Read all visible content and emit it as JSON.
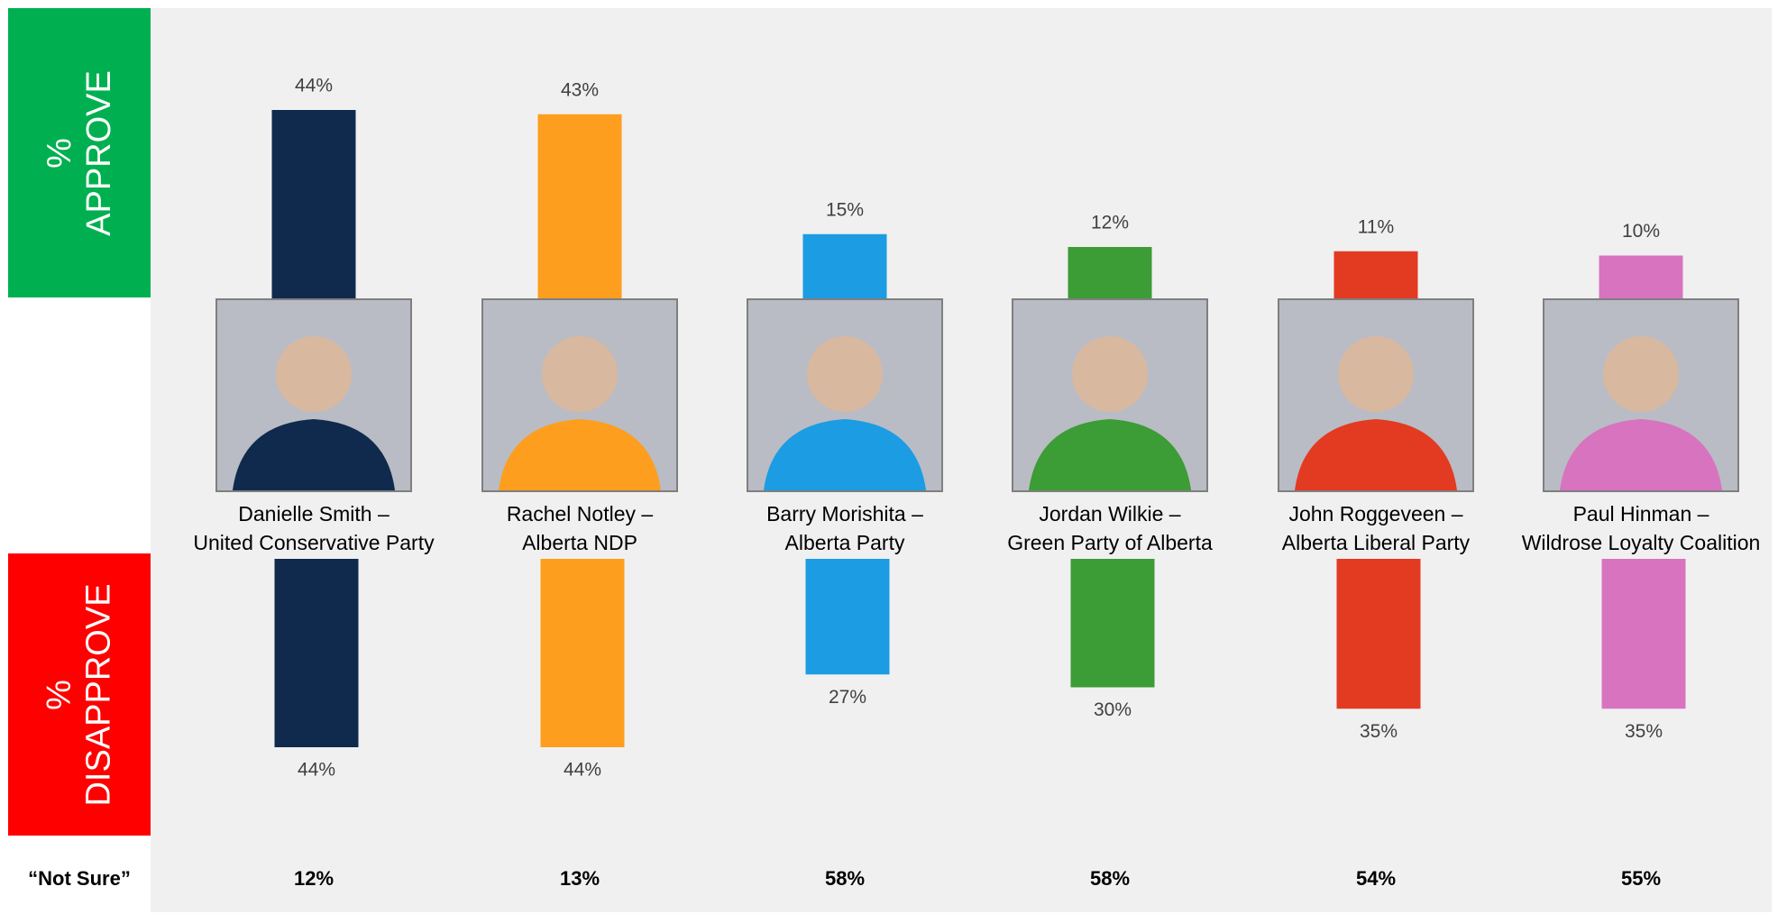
{
  "chart_data": {
    "type": "bar",
    "categories": [
      {
        "name": "Danielle Smith –",
        "party": "United Conservative Party"
      },
      {
        "name": "Rachel Notley –",
        "party": "Alberta NDP"
      },
      {
        "name": "Barry Morishita –",
        "party": "Alberta Party"
      },
      {
        "name": "Jordan Wilkie –",
        "party": "Green Party of Alberta"
      },
      {
        "name": "John Roggeveen –",
        "party": "Alberta Liberal Party"
      },
      {
        "name": "Paul Hinman –",
        "party": "Wildrose Loyalty Coalition"
      }
    ],
    "colors": [
      "#0f2a4d",
      "#fd9e1e",
      "#1b9ce3",
      "#3c9c35",
      "#e33a22",
      "#d873c0"
    ],
    "series": [
      {
        "name": "% APPROVE",
        "color": "#00b050",
        "values": [
          44,
          43,
          15,
          12,
          11,
          10
        ],
        "value_labels": [
          "44%",
          "43%",
          "15%",
          "12%",
          "11%",
          "10%"
        ]
      },
      {
        "name": "% DISAPPROVE",
        "color": "#ff0000",
        "values": [
          44,
          44,
          27,
          30,
          35,
          35
        ],
        "value_labels": [
          "44%",
          "44%",
          "27%",
          "30%",
          "35%",
          "35%"
        ]
      }
    ],
    "not_sure": {
      "name": "“Not Sure”",
      "values": [
        12,
        13,
        58,
        58,
        54,
        55
      ],
      "value_labels": [
        "12%",
        "13%",
        "58%",
        "58%",
        "54%",
        "55%"
      ]
    }
  }
}
